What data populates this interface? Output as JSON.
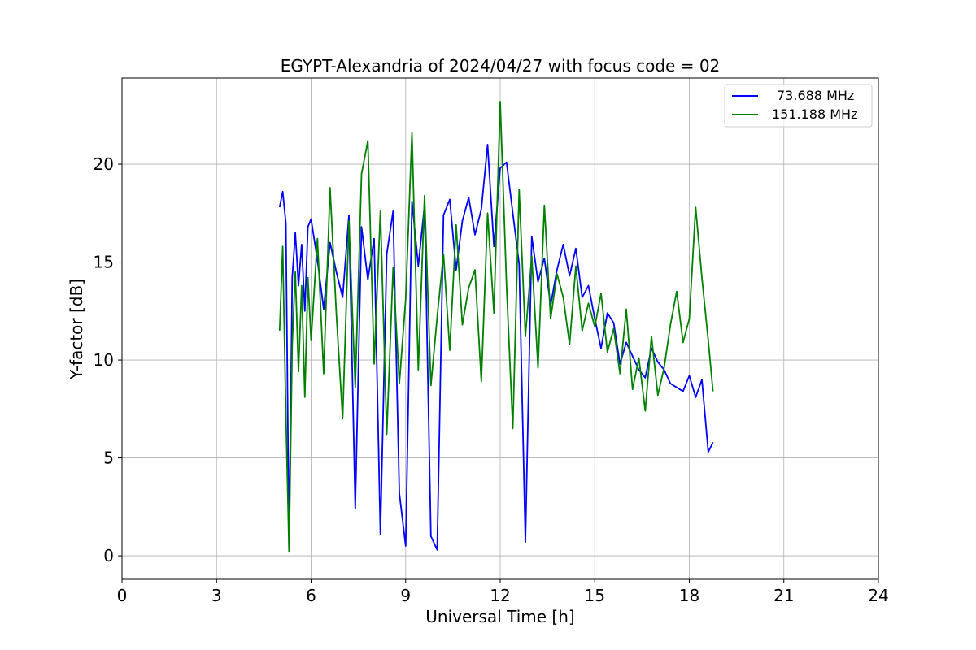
{
  "chart_data": {
    "type": "line",
    "title": "EGYPT-Alexandria of 2024/04/27 with focus code = 02",
    "xlabel": "Universal Time [h]",
    "ylabel": "Y-factor [dB]",
    "xlim": [
      0,
      24
    ],
    "ylim": [
      -1.2,
      24.4
    ],
    "xticks": [
      0,
      3,
      6,
      9,
      12,
      15,
      18,
      21,
      24
    ],
    "yticks": [
      0,
      5,
      10,
      15,
      20
    ],
    "grid": true,
    "legend_position": "top-right",
    "series": [
      {
        "name": "73.688 MHz",
        "color": "#0000ff",
        "x": [
          5.0,
          5.1,
          5.2,
          5.3,
          5.4,
          5.5,
          5.6,
          5.7,
          5.8,
          5.9,
          6.0,
          6.2,
          6.4,
          6.6,
          6.8,
          7.0,
          7.2,
          7.4,
          7.6,
          7.8,
          8.0,
          8.2,
          8.4,
          8.6,
          8.8,
          9.0,
          9.2,
          9.4,
          9.6,
          9.8,
          10.0,
          10.2,
          10.4,
          10.6,
          10.8,
          11.0,
          11.2,
          11.4,
          11.6,
          11.8,
          12.0,
          12.2,
          12.4,
          12.6,
          12.8,
          13.0,
          13.2,
          13.4,
          13.6,
          13.8,
          14.0,
          14.2,
          14.4,
          14.6,
          14.8,
          15.0,
          15.2,
          15.4,
          15.6,
          15.8,
          16.0,
          16.2,
          16.4,
          16.6,
          16.8,
          17.0,
          17.2,
          17.4,
          17.6,
          17.8,
          18.0,
          18.2,
          18.4,
          18.6,
          18.75
        ],
        "y": [
          17.8,
          18.6,
          17.0,
          0.3,
          14.2,
          16.5,
          13.8,
          15.9,
          12.5,
          16.8,
          17.2,
          15.1,
          12.6,
          16.0,
          14.5,
          13.2,
          17.4,
          2.4,
          16.8,
          14.1,
          16.2,
          1.1,
          15.4,
          17.6,
          3.2,
          0.5,
          18.1,
          14.8,
          17.9,
          1.0,
          0.3,
          17.4,
          18.2,
          14.6,
          17.1,
          18.3,
          16.4,
          17.7,
          21.0,
          15.8,
          19.8,
          20.1,
          17.5,
          14.9,
          0.7,
          16.3,
          14.0,
          15.2,
          12.8,
          14.6,
          15.9,
          14.3,
          15.7,
          13.2,
          13.8,
          12.1,
          10.6,
          12.4,
          11.9,
          9.8,
          10.9,
          10.2,
          9.5,
          9.1,
          10.6,
          9.9,
          9.5,
          8.8,
          8.6,
          8.4,
          9.2,
          8.1,
          9.0,
          5.3,
          5.8
        ]
      },
      {
        "name": "151.188 MHz",
        "color": "#008000",
        "x": [
          5.0,
          5.1,
          5.2,
          5.3,
          5.4,
          5.5,
          5.6,
          5.7,
          5.8,
          5.9,
          6.0,
          6.2,
          6.4,
          6.6,
          6.8,
          7.0,
          7.2,
          7.4,
          7.6,
          7.8,
          8.0,
          8.2,
          8.4,
          8.6,
          8.8,
          9.0,
          9.2,
          9.4,
          9.6,
          9.8,
          10.0,
          10.2,
          10.4,
          10.6,
          10.8,
          11.0,
          11.2,
          11.4,
          11.6,
          11.8,
          12.0,
          12.2,
          12.4,
          12.6,
          12.8,
          13.0,
          13.2,
          13.4,
          13.6,
          13.8,
          14.0,
          14.2,
          14.4,
          14.6,
          14.8,
          15.0,
          15.2,
          15.4,
          15.6,
          15.8,
          16.0,
          16.2,
          16.4,
          16.6,
          16.8,
          17.0,
          17.2,
          17.4,
          17.6,
          17.8,
          18.0,
          18.2,
          18.4,
          18.6,
          18.75
        ],
        "y": [
          11.5,
          15.8,
          7.2,
          0.2,
          10.8,
          14.5,
          9.4,
          13.8,
          8.1,
          14.2,
          11.0,
          16.2,
          9.3,
          18.8,
          12.4,
          7.0,
          17.1,
          8.6,
          19.5,
          21.2,
          9.8,
          17.6,
          6.2,
          14.7,
          8.8,
          13.1,
          21.6,
          9.5,
          18.4,
          8.7,
          12.2,
          15.4,
          10.5,
          16.9,
          11.8,
          13.7,
          14.6,
          8.9,
          17.5,
          12.4,
          23.2,
          13.8,
          6.5,
          18.7,
          11.2,
          15.3,
          9.6,
          17.9,
          12.1,
          14.4,
          13.2,
          10.8,
          14.8,
          11.5,
          12.9,
          11.7,
          13.4,
          10.4,
          11.6,
          9.3,
          12.6,
          8.5,
          10.1,
          7.4,
          11.2,
          8.2,
          9.6,
          11.8,
          13.5,
          10.9,
          12.1,
          17.8,
          14.2,
          11.0,
          8.4
        ]
      }
    ]
  }
}
